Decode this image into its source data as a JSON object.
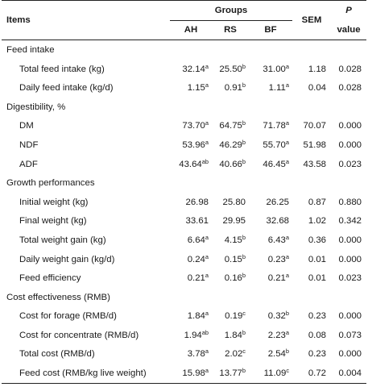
{
  "header": {
    "items": "Items",
    "groups": "Groups",
    "sem": "SEM",
    "p_top": "P",
    "p_bottom": "value",
    "columns": [
      "AH",
      "RS",
      "BF"
    ]
  },
  "rows": [
    {
      "type": "section",
      "label": "Feed intake"
    },
    {
      "type": "row",
      "label": "Total feed intake (kg)",
      "ah": "32.14",
      "ah_sup": "a",
      "rs": "25.50",
      "rs_sup": "b",
      "bf": "31.00",
      "bf_sup": "a",
      "sem": "1.18",
      "p": "0.028"
    },
    {
      "type": "row",
      "label": "Daily feed intake (kg/d)",
      "ah": "1.15",
      "ah_sup": "a",
      "rs": "0.91",
      "rs_sup": "b",
      "bf": "1.11",
      "bf_sup": "a",
      "sem": "0.04",
      "p": "0.028"
    },
    {
      "type": "section",
      "label": "Digestibility, %"
    },
    {
      "type": "row",
      "label": "DM",
      "ah": "73.70",
      "ah_sup": "a",
      "rs": "64.75",
      "rs_sup": "b",
      "bf": "71.78",
      "bf_sup": "a",
      "sem": "70.07",
      "p": "0.000"
    },
    {
      "type": "row",
      "label": "NDF",
      "ah": "53.96",
      "ah_sup": "a",
      "rs": "46.29",
      "rs_sup": "b",
      "bf": "55.70",
      "bf_sup": "a",
      "sem": "51.98",
      "p": "0.000"
    },
    {
      "type": "row",
      "label": "ADF",
      "ah": "43.64",
      "ah_sup": "ab",
      "rs": "40.66",
      "rs_sup": "b",
      "bf": "46.45",
      "bf_sup": "a",
      "sem": "43.58",
      "p": "0.023"
    },
    {
      "type": "section",
      "label": "Growth performances"
    },
    {
      "type": "row",
      "label": "Initial weight (kg)",
      "ah": "26.98",
      "ah_sup": "",
      "rs": "25.80",
      "rs_sup": "",
      "bf": "26.25",
      "bf_sup": "",
      "sem": "0.87",
      "p": "0.880"
    },
    {
      "type": "row",
      "label": "Final weight (kg)",
      "ah": "33.61",
      "ah_sup": "",
      "rs": "29.95",
      "rs_sup": "",
      "bf": "32.68",
      "bf_sup": "",
      "sem": "1.02",
      "p": "0.342"
    },
    {
      "type": "row",
      "label": "Total weight gain (kg)",
      "ah": "6.64",
      "ah_sup": "a",
      "rs": "4.15",
      "rs_sup": "b",
      "bf": "6.43",
      "bf_sup": "a",
      "sem": "0.36",
      "p": "0.000"
    },
    {
      "type": "row",
      "label": "Daily weight gain (kg/d)",
      "ah": "0.24",
      "ah_sup": "a",
      "rs": "0.15",
      "rs_sup": "b",
      "bf": "0.23",
      "bf_sup": "a",
      "sem": "0.01",
      "p": "0.000"
    },
    {
      "type": "row",
      "label": "Feed efficiency",
      "ah": "0.21",
      "ah_sup": "a",
      "rs": "0.16",
      "rs_sup": "b",
      "bf": "0.21",
      "bf_sup": "a",
      "sem": "0.01",
      "p": "0.023"
    },
    {
      "type": "section",
      "label": "Cost effectiveness (RMB)"
    },
    {
      "type": "row",
      "label": "Cost for forage (RMB/d)",
      "ah": "1.84",
      "ah_sup": "a",
      "rs": "0.19",
      "rs_sup": "c",
      "bf": "0.32",
      "bf_sup": "b",
      "sem": "0.23",
      "p": "0.000"
    },
    {
      "type": "row",
      "label": "Cost for concentrate (RMB/d)",
      "ah": "1.94",
      "ah_sup": "ab",
      "rs": "1.84",
      "rs_sup": "b",
      "bf": "2.23",
      "bf_sup": "a",
      "sem": "0.08",
      "p": "0.073"
    },
    {
      "type": "row",
      "label": "Total cost (RMB/d)",
      "ah": "3.78",
      "ah_sup": "a",
      "rs": "2.02",
      "rs_sup": "c",
      "bf": "2.54",
      "bf_sup": "b",
      "sem": "0.23",
      "p": "0.000"
    },
    {
      "type": "row",
      "label": "Feed cost (RMB/kg live weight)",
      "ah": "15.98",
      "ah_sup": "a",
      "rs": "13.77",
      "rs_sup": "b",
      "bf": "11.09",
      "bf_sup": "c",
      "sem": "0.72",
      "p": "0.004"
    }
  ]
}
